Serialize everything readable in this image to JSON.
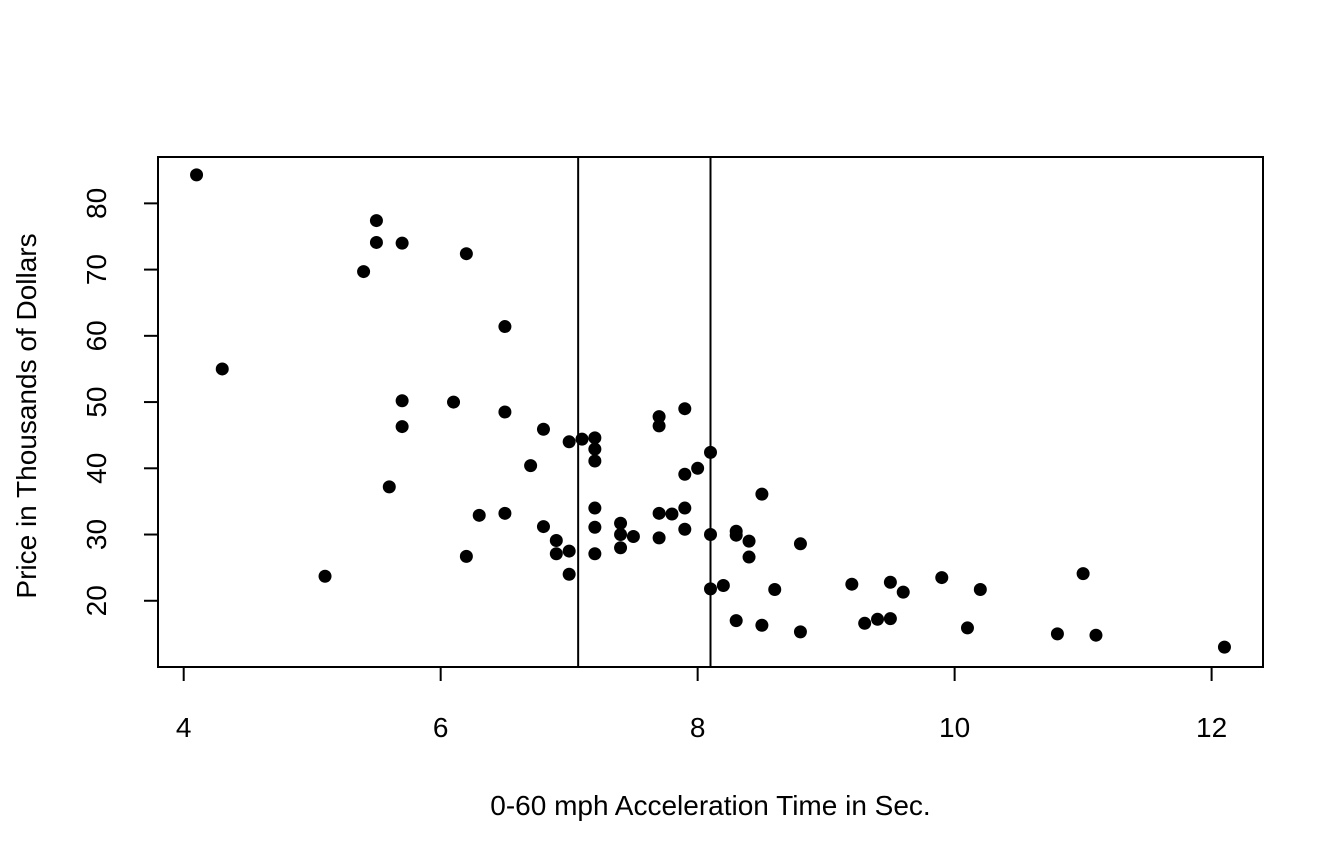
{
  "chart_data": {
    "type": "scatter",
    "title": "",
    "xlabel": "0-60 mph Acceleration Time in Sec.",
    "ylabel": "Price in Thousands of Dollars",
    "xlim": [
      3.8,
      12.4
    ],
    "ylim": [
      10,
      87
    ],
    "xticks": [
      4,
      6,
      8,
      10,
      12
    ],
    "yticks": [
      20,
      30,
      40,
      50,
      60,
      70,
      80
    ],
    "grid": false,
    "vlines": [
      7.07,
      8.1
    ],
    "point_color": "#000000",
    "points": [
      {
        "x": 4.1,
        "y": 84.3
      },
      {
        "x": 4.3,
        "y": 55.0
      },
      {
        "x": 5.1,
        "y": 23.7
      },
      {
        "x": 5.4,
        "y": 69.7
      },
      {
        "x": 5.5,
        "y": 77.4
      },
      {
        "x": 5.5,
        "y": 74.1
      },
      {
        "x": 5.6,
        "y": 37.2
      },
      {
        "x": 5.7,
        "y": 74.0
      },
      {
        "x": 5.7,
        "y": 50.2
      },
      {
        "x": 5.7,
        "y": 46.3
      },
      {
        "x": 6.1,
        "y": 50.0
      },
      {
        "x": 6.2,
        "y": 72.4
      },
      {
        "x": 6.2,
        "y": 26.7
      },
      {
        "x": 6.3,
        "y": 32.9
      },
      {
        "x": 6.5,
        "y": 61.4
      },
      {
        "x": 6.5,
        "y": 48.5
      },
      {
        "x": 6.5,
        "y": 33.2
      },
      {
        "x": 6.7,
        "y": 40.4
      },
      {
        "x": 6.8,
        "y": 45.9
      },
      {
        "x": 6.8,
        "y": 31.2
      },
      {
        "x": 6.9,
        "y": 29.1
      },
      {
        "x": 6.9,
        "y": 27.1
      },
      {
        "x": 7.0,
        "y": 44.0
      },
      {
        "x": 7.0,
        "y": 27.5
      },
      {
        "x": 7.0,
        "y": 24.0
      },
      {
        "x": 7.1,
        "y": 44.4
      },
      {
        "x": 7.2,
        "y": 44.6
      },
      {
        "x": 7.2,
        "y": 42.9
      },
      {
        "x": 7.2,
        "y": 41.1
      },
      {
        "x": 7.2,
        "y": 34.0
      },
      {
        "x": 7.2,
        "y": 31.1
      },
      {
        "x": 7.2,
        "y": 27.1
      },
      {
        "x": 7.4,
        "y": 31.7
      },
      {
        "x": 7.4,
        "y": 30.0
      },
      {
        "x": 7.4,
        "y": 28.0
      },
      {
        "x": 7.5,
        "y": 29.7
      },
      {
        "x": 7.7,
        "y": 47.8
      },
      {
        "x": 7.7,
        "y": 46.4
      },
      {
        "x": 7.7,
        "y": 33.2
      },
      {
        "x": 7.7,
        "y": 29.5
      },
      {
        "x": 7.8,
        "y": 33.1
      },
      {
        "x": 7.9,
        "y": 49.0
      },
      {
        "x": 7.9,
        "y": 39.1
      },
      {
        "x": 7.9,
        "y": 34.0
      },
      {
        "x": 7.9,
        "y": 30.8
      },
      {
        "x": 8.0,
        "y": 40.0
      },
      {
        "x": 8.1,
        "y": 42.4
      },
      {
        "x": 8.1,
        "y": 30.0
      },
      {
        "x": 8.1,
        "y": 21.8
      },
      {
        "x": 8.2,
        "y": 22.3
      },
      {
        "x": 8.3,
        "y": 30.5
      },
      {
        "x": 8.3,
        "y": 29.9
      },
      {
        "x": 8.3,
        "y": 17.0
      },
      {
        "x": 8.4,
        "y": 29.0
      },
      {
        "x": 8.4,
        "y": 26.6
      },
      {
        "x": 8.5,
        "y": 36.1
      },
      {
        "x": 8.5,
        "y": 16.3
      },
      {
        "x": 8.6,
        "y": 21.7
      },
      {
        "x": 8.8,
        "y": 28.6
      },
      {
        "x": 8.8,
        "y": 15.3
      },
      {
        "x": 9.2,
        "y": 22.5
      },
      {
        "x": 9.3,
        "y": 16.6
      },
      {
        "x": 9.4,
        "y": 17.2
      },
      {
        "x": 9.5,
        "y": 22.8
      },
      {
        "x": 9.5,
        "y": 17.3
      },
      {
        "x": 9.6,
        "y": 21.3
      },
      {
        "x": 9.9,
        "y": 23.5
      },
      {
        "x": 10.1,
        "y": 15.9
      },
      {
        "x": 10.2,
        "y": 21.7
      },
      {
        "x": 10.8,
        "y": 15.0
      },
      {
        "x": 11.0,
        "y": 24.1
      },
      {
        "x": 11.1,
        "y": 14.8
      },
      {
        "x": 12.1,
        "y": 13.0
      }
    ]
  }
}
